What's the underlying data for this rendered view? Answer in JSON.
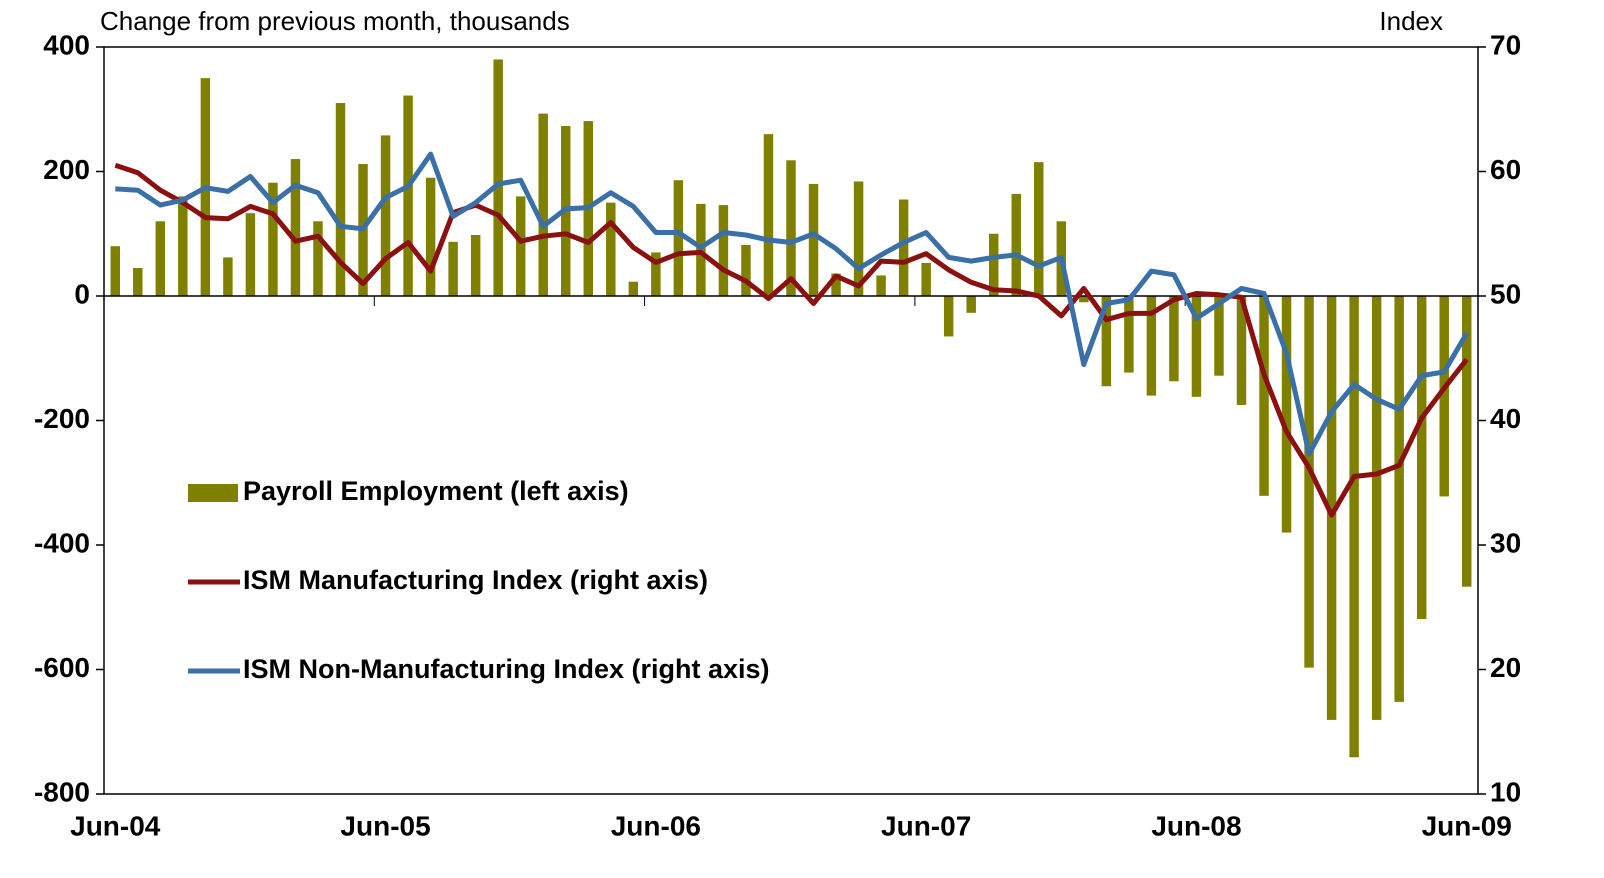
{
  "chart_data": {
    "type": "bar-line",
    "y_label": "Change from previous month, thousands",
    "y2_label": "Index",
    "categories": [
      "Jun-04",
      null,
      null,
      null,
      null,
      null,
      null,
      null,
      null,
      null,
      null,
      null,
      "Jun-05",
      null,
      null,
      null,
      null,
      null,
      null,
      null,
      null,
      null,
      null,
      null,
      "Jun-06",
      null,
      null,
      null,
      null,
      null,
      null,
      null,
      null,
      null,
      null,
      null,
      "Jun-07",
      null,
      null,
      null,
      null,
      null,
      null,
      null,
      null,
      null,
      null,
      null,
      "Jun-08",
      null,
      null,
      null,
      null,
      null,
      null,
      null,
      null,
      null,
      null,
      null,
      "Jun-09"
    ],
    "ylim": [
      -800,
      400
    ],
    "yticks": [
      -800,
      -600,
      -400,
      -200,
      0,
      200,
      400
    ],
    "y2lim": [
      10,
      70
    ],
    "y2ticks": [
      10,
      20,
      30,
      40,
      50,
      60,
      70
    ],
    "legend": "left",
    "series": [
      {
        "name": "Payroll Employment (left axis)",
        "kind": "bar",
        "axis": "y",
        "color": "#808000",
        "values": [
          80,
          45,
          120,
          160,
          350,
          62,
          133,
          182,
          220,
          120,
          310,
          212,
          258,
          322,
          190,
          87,
          98,
          380,
          160,
          293,
          273,
          281,
          150,
          23,
          70,
          186,
          148,
          146,
          82,
          260,
          218,
          180,
          36,
          184,
          33,
          155,
          53,
          -65,
          -27,
          100,
          164,
          215,
          120,
          -10,
          -145,
          -123,
          -160,
          -137,
          -162,
          -128,
          -175,
          -321,
          -380,
          -597,
          -681,
          -741,
          -681,
          -652,
          -519,
          -322,
          -467
        ]
      },
      {
        "name": "ISM Manufacturing Index (right axis)",
        "kind": "line",
        "axis": "y2",
        "color": "#8b1010",
        "values": [
          60.5,
          59.9,
          58.5,
          57.5,
          56.3,
          56.2,
          57.2,
          56.6,
          54.4,
          54.8,
          52.7,
          51.0,
          53.0,
          54.3,
          52.0,
          56.7,
          57.3,
          56.5,
          54.4,
          54.8,
          55.0,
          54.3,
          55.9,
          53.9,
          52.7,
          53.4,
          53.5,
          52.1,
          51.2,
          49.8,
          51.4,
          49.4,
          51.6,
          50.8,
          52.8,
          52.7,
          53.4,
          52.1,
          51.1,
          50.5,
          50.4,
          50.0,
          48.4,
          50.6,
          48.1,
          48.6,
          48.6,
          49.7,
          50.2,
          50.1,
          49.9,
          43.7,
          39.1,
          36.2,
          32.4,
          35.5,
          35.7,
          36.4,
          40.2,
          42.6,
          44.9
        ]
      },
      {
        "name": "ISM Non-Manufacturing Index (right axis)",
        "kind": "line",
        "axis": "y2",
        "color": "#3a6fa8",
        "values": [
          58.6,
          58.5,
          57.3,
          57.7,
          58.7,
          58.4,
          59.6,
          57.5,
          58.9,
          58.3,
          55.6,
          55.4,
          57.9,
          58.8,
          61.4,
          56.4,
          57.5,
          59.0,
          59.3,
          55.6,
          57.0,
          57.1,
          58.3,
          57.2,
          55.1,
          55.1,
          53.9,
          55.1,
          54.9,
          54.5,
          54.3,
          55.0,
          53.8,
          52.2,
          53.3,
          54.3,
          55.1,
          53.1,
          52.8,
          53.1,
          53.3,
          52.4,
          53.1,
          44.5,
          49.4,
          49.7,
          52.0,
          51.7,
          48.2,
          49.4,
          50.6,
          50.2,
          45.4,
          37.3,
          40.7,
          42.9,
          41.7,
          40.9,
          43.6,
          43.9,
          47.0
        ]
      }
    ]
  }
}
